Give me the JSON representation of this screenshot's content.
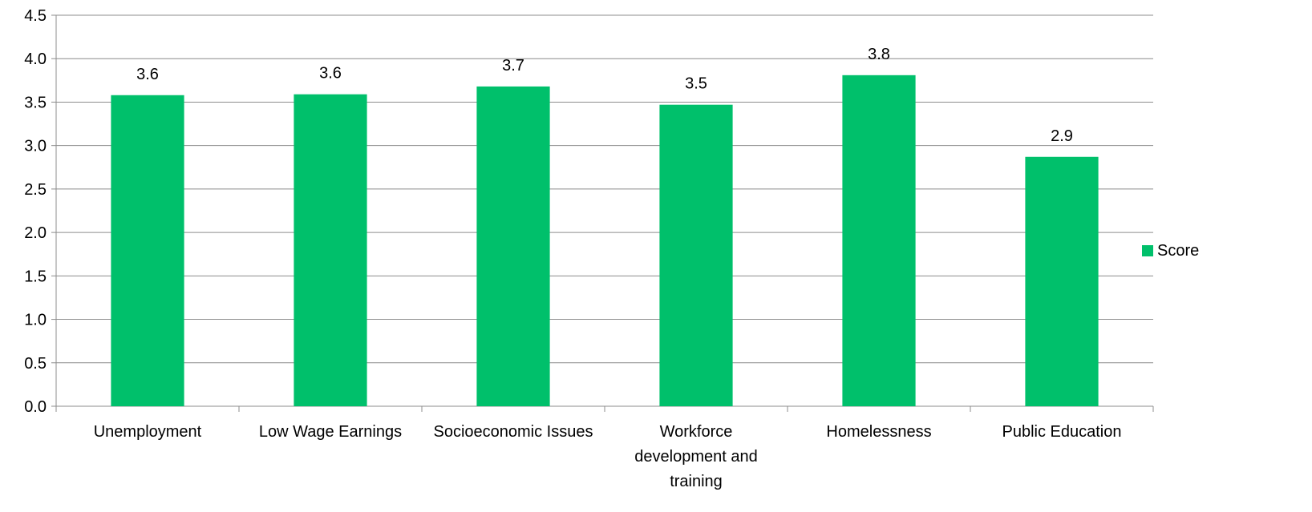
{
  "chart_data": {
    "type": "bar",
    "categories": [
      [
        "Unemployment"
      ],
      [
        "Low Wage Earnings"
      ],
      [
        "Socioeconomic Issues"
      ],
      [
        "Workforce",
        "development and",
        "training"
      ],
      [
        "Homelessness"
      ],
      [
        "Public Education"
      ]
    ],
    "series": [
      {
        "name": "Score",
        "values": [
          3.58,
          3.59,
          3.68,
          3.47,
          3.81,
          2.87
        ],
        "labels": [
          "3.6",
          "3.6",
          "3.7",
          "3.5",
          "3.8",
          "2.9"
        ],
        "color": "#00c06b"
      }
    ],
    "ylim": [
      0,
      4.5
    ],
    "yticks": [
      "0.0",
      "0.5",
      "1.0",
      "1.5",
      "2.0",
      "2.5",
      "3.0",
      "3.5",
      "4.0",
      "4.5"
    ],
    "ytick_step": 0.5,
    "grid": true,
    "gridline_color": "#8c8c8c",
    "legend_position": "right",
    "title": "",
    "xlabel": "",
    "ylabel": ""
  }
}
